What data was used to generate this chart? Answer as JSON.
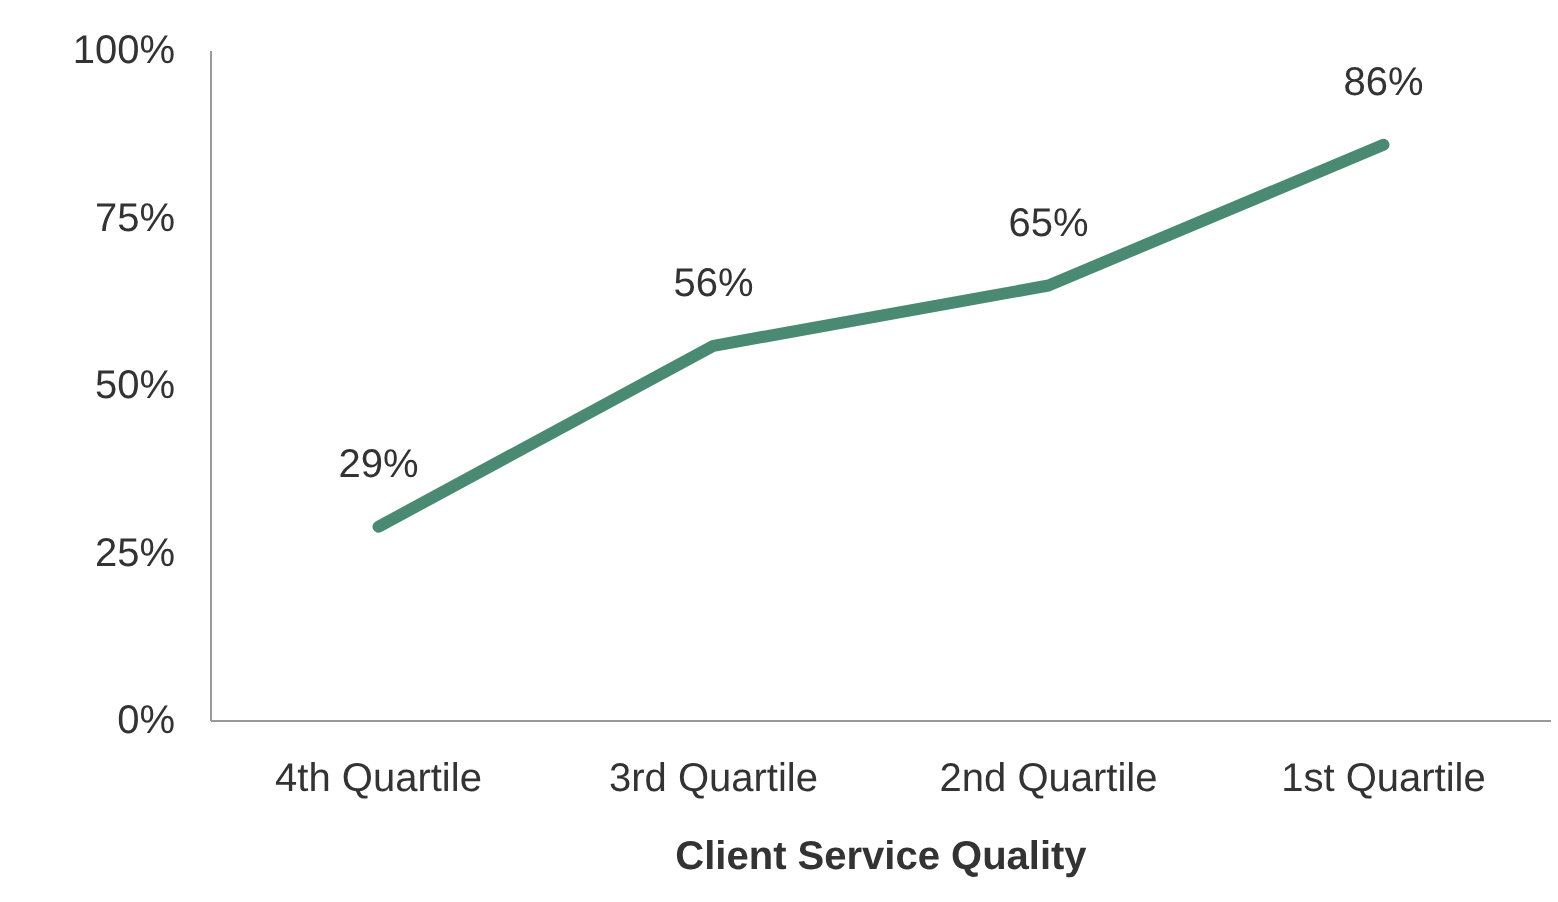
{
  "chart_data": {
    "type": "line",
    "xlabel": "Client Service Quality",
    "categories": [
      "4th Quartile",
      "3rd Quartile",
      "2nd Quartile",
      "1st Quartile"
    ],
    "series": [
      {
        "color": "#4a8a73",
        "values": [
          29,
          56,
          65,
          86
        ]
      }
    ],
    "value_labels": [
      "29%",
      "56%",
      "65%",
      "86%"
    ],
    "ylim": [
      0,
      100
    ],
    "yticks": [
      {
        "value": 0,
        "label": "0%"
      },
      {
        "value": 25,
        "label": "25%"
      },
      {
        "value": 50,
        "label": "50%"
      },
      {
        "value": 75,
        "label": "75%"
      },
      {
        "value": 100,
        "label": "100%"
      }
    ],
    "grid": false,
    "marker": "none",
    "line_style": "solid"
  }
}
